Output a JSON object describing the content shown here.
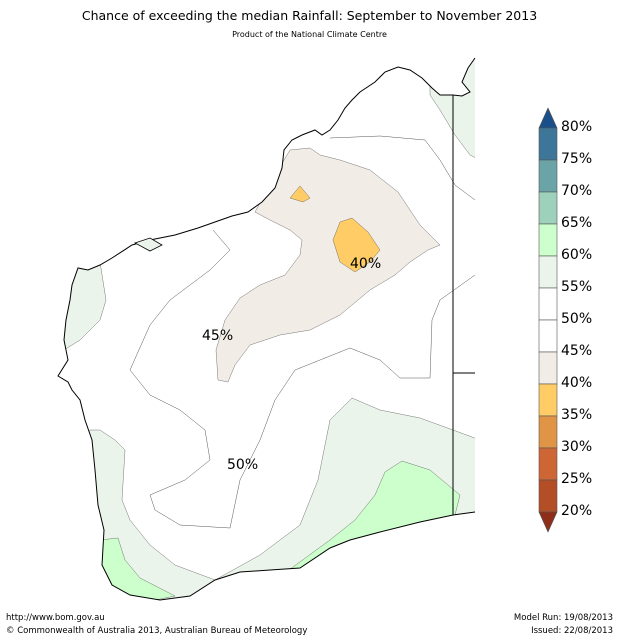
{
  "header": {
    "title": "Chance of exceeding the median Rainfall: September to November 2013",
    "subtitle": "Product of the National Climate Centre"
  },
  "map": {
    "contour_labels": [
      "40%",
      "45%",
      "50%"
    ]
  },
  "colorbar": {
    "ticks": [
      "80%",
      "75%",
      "70%",
      "65%",
      "60%",
      "55%",
      "50%",
      "45%",
      "40%",
      "35%",
      "30%",
      "25%",
      "20%"
    ],
    "colors": [
      "#1a4f8a",
      "#3d7698",
      "#6aa4a6",
      "#9dd1bb",
      "#ccffcc",
      "#eaf4ea",
      "#ffffff",
      "#ffffff",
      "#f1ece6",
      "#ffcc66",
      "#e09445",
      "#cd6634",
      "#b34e27",
      "#8c2e1a"
    ]
  },
  "footer": {
    "url": "http://www.bom.gov.au",
    "copyright": "©  Commonwealth of Australia 2013, Australian Bureau of Meteorology",
    "model_run": "Model Run: 19/08/2013",
    "issued": "Issued: 22/08/2013"
  }
}
